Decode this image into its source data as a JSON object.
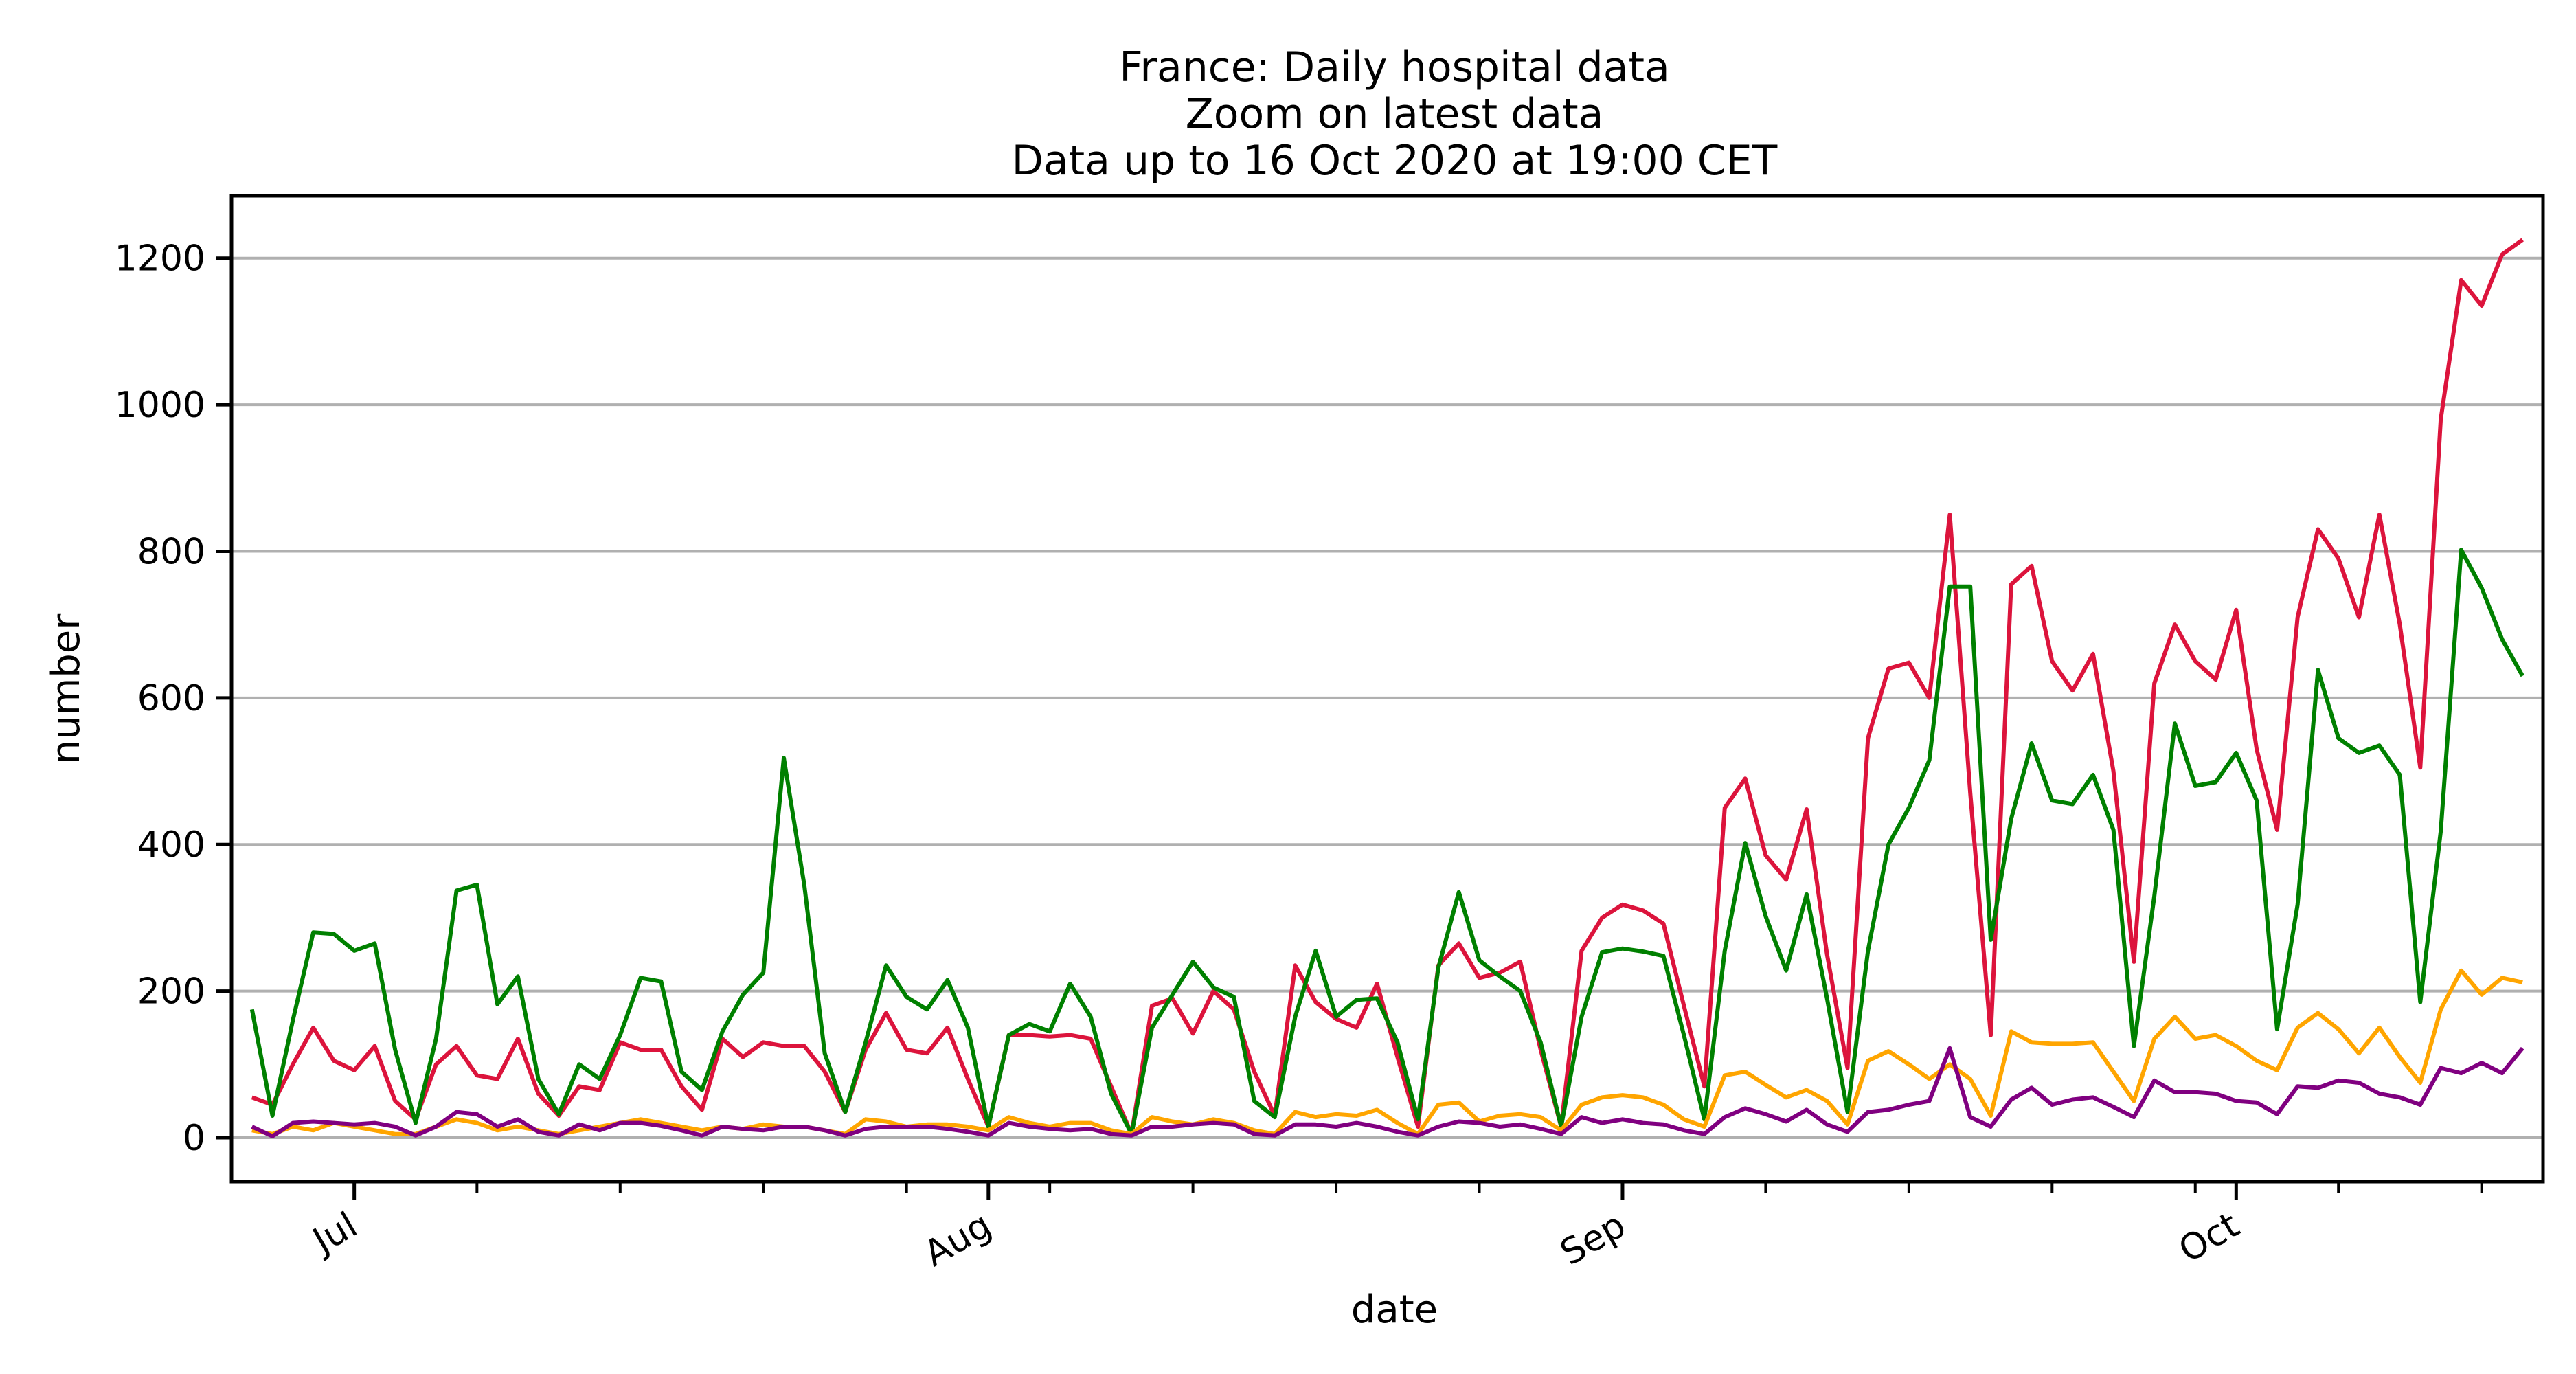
{
  "chart_data": {
    "type": "line",
    "title_lines": [
      "France: Daily hospital data",
      "Zoom on latest data",
      "Data up to 16 Oct 2020 at 19:00 CET"
    ],
    "xlabel": "date",
    "ylabel": "number",
    "x_start": "2020-06-26",
    "x_end": "2020-10-16",
    "xlim": [
      "2020-06-25",
      "2020-10-16"
    ],
    "ylim": [
      -60,
      1285
    ],
    "y_ticks": [
      0,
      200,
      400,
      600,
      800,
      1000,
      1200
    ],
    "x_major_ticks": [
      {
        "date": "2020-07-01",
        "label": "Jul"
      },
      {
        "date": "2020-08-01",
        "label": "Aug"
      },
      {
        "date": "2020-09-01",
        "label": "Sep"
      },
      {
        "date": "2020-10-01",
        "label": "Oct"
      }
    ],
    "x_minor_ticks": [
      "2020-07-07",
      "2020-07-14",
      "2020-07-21",
      "2020-07-28",
      "2020-08-04",
      "2020-08-11",
      "2020-08-18",
      "2020-08-25",
      "2020-09-08",
      "2020-09-15",
      "2020-09-22",
      "2020-09-29",
      "2020-10-06",
      "2020-10-13"
    ],
    "grid": "horizontal",
    "series": [
      {
        "color": "#dc143c",
        "values": [
          55,
          45,
          100,
          150,
          105,
          92,
          125,
          50,
          25,
          100,
          125,
          85,
          80,
          135,
          60,
          30,
          70,
          65,
          130,
          120,
          120,
          70,
          38,
          135,
          110,
          130,
          125,
          125,
          90,
          35,
          120,
          170,
          120,
          115,
          150,
          80,
          15,
          140,
          140,
          138,
          140,
          135,
          70,
          5,
          180,
          190,
          142,
          200,
          175,
          90,
          30,
          235,
          185,
          162,
          150,
          210,
          110,
          15,
          235,
          265,
          218,
          225,
          240,
          120,
          15,
          255,
          300,
          318,
          310,
          292,
          180,
          70,
          450,
          490,
          385,
          352,
          448,
          250,
          95,
          545,
          640,
          648,
          600,
          850,
          470,
          140,
          755,
          780,
          650,
          610,
          660,
          500,
          240,
          620,
          700,
          650,
          625,
          720,
          530,
          420,
          710,
          830,
          790,
          710,
          850,
          700,
          505,
          980,
          1170,
          1135,
          1205,
          1225
        ]
      },
      {
        "color": "#008000",
        "values": [
          175,
          30,
          160,
          280,
          278,
          255,
          265,
          120,
          20,
          135,
          337,
          345,
          182,
          220,
          80,
          32,
          100,
          80,
          140,
          218,
          213,
          90,
          65,
          145,
          195,
          225,
          518,
          345,
          115,
          35,
          130,
          235,
          192,
          175,
          215,
          150,
          15,
          140,
          155,
          145,
          210,
          165,
          60,
          5,
          150,
          195,
          240,
          205,
          192,
          50,
          28,
          165,
          255,
          165,
          188,
          190,
          130,
          25,
          232,
          335,
          242,
          220,
          200,
          130,
          15,
          165,
          253,
          258,
          254,
          248,
          140,
          25,
          255,
          402,
          302,
          228,
          332,
          190,
          35,
          255,
          400,
          450,
          515,
          752,
          752,
          270,
          435,
          538,
          460,
          455,
          495,
          420,
          125,
          330,
          565,
          480,
          485,
          525,
          460,
          148,
          318,
          638,
          545,
          525,
          535,
          495,
          185,
          418,
          802,
          750,
          680,
          630
        ]
      },
      {
        "color": "#ffa500",
        "values": [
          10,
          5,
          15,
          10,
          20,
          15,
          10,
          5,
          5,
          15,
          25,
          20,
          10,
          15,
          10,
          5,
          10,
          15,
          20,
          25,
          20,
          15,
          10,
          15,
          12,
          18,
          15,
          15,
          10,
          5,
          25,
          22,
          15,
          18,
          18,
          15,
          10,
          28,
          20,
          15,
          20,
          20,
          10,
          5,
          28,
          22,
          18,
          25,
          20,
          10,
          5,
          35,
          28,
          32,
          30,
          38,
          20,
          5,
          45,
          48,
          22,
          30,
          32,
          28,
          10,
          45,
          55,
          58,
          55,
          45,
          25,
          15,
          85,
          90,
          72,
          55,
          65,
          50,
          18,
          105,
          118,
          100,
          80,
          100,
          80,
          30,
          145,
          130,
          128,
          128,
          130,
          90,
          50,
          135,
          165,
          135,
          140,
          125,
          105,
          92,
          150,
          170,
          148,
          115,
          150,
          110,
          75,
          175,
          228,
          195,
          218,
          212
        ]
      },
      {
        "color": "#800080",
        "values": [
          15,
          2,
          20,
          22,
          20,
          18,
          20,
          15,
          3,
          15,
          35,
          32,
          15,
          25,
          8,
          3,
          18,
          10,
          20,
          20,
          16,
          10,
          3,
          15,
          12,
          10,
          15,
          15,
          10,
          3,
          12,
          15,
          15,
          15,
          12,
          8,
          3,
          20,
          15,
          12,
          10,
          12,
          5,
          3,
          15,
          15,
          18,
          20,
          18,
          5,
          3,
          18,
          18,
          15,
          20,
          15,
          8,
          3,
          15,
          22,
          20,
          15,
          18,
          12,
          5,
          28,
          20,
          25,
          20,
          18,
          10,
          5,
          28,
          40,
          32,
          22,
          38,
          18,
          8,
          35,
          38,
          45,
          50,
          122,
          28,
          15,
          52,
          68,
          45,
          52,
          55,
          42,
          28,
          78,
          62,
          62,
          60,
          50,
          48,
          32,
          70,
          68,
          78,
          75,
          60,
          55,
          45,
          95,
          88,
          102,
          88,
          122
        ]
      }
    ]
  }
}
